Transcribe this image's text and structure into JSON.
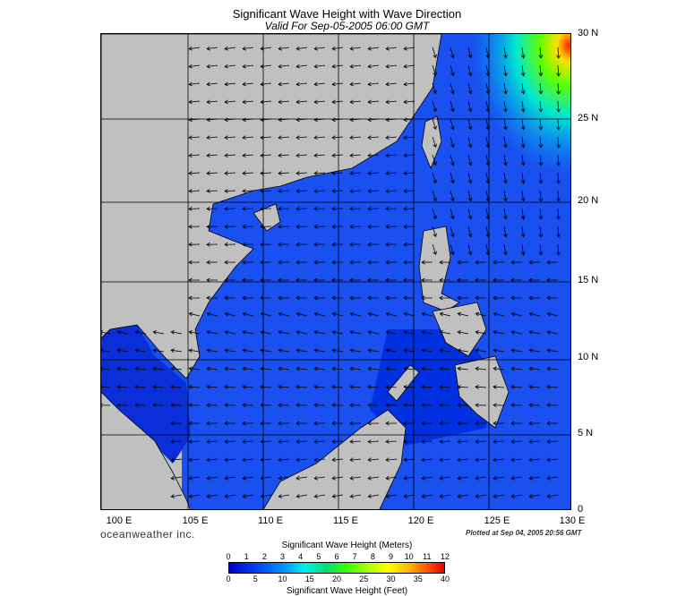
{
  "title": "Significant Wave Height with Wave Direction",
  "subtitle": "Valid For Sep-05-2005 06:00 GMT",
  "lat_labels": [
    "30 N",
    "25 N",
    "20 N",
    "15 N",
    "10 N",
    "5 N",
    "0"
  ],
  "lon_labels": [
    "100 E",
    "105 E",
    "110 E",
    "115 E",
    "120 E",
    "125 E",
    "130 E"
  ],
  "credit": "oceanweather inc.",
  "plotted": "Plotted at Sep 04, 2005 20:56 GMT",
  "colorbar": {
    "meters_label": "Significant Wave Height (Meters)",
    "feet_label": "Significant Wave Height (Feet)",
    "meters_ticks": [
      "0",
      "1",
      "2",
      "3",
      "4",
      "5",
      "6",
      "7",
      "8",
      "9",
      "10",
      "11",
      "12"
    ],
    "feet_ticks": [
      "0",
      "5",
      "10",
      "15",
      "20",
      "25",
      "30",
      "35",
      "40"
    ]
  },
  "colors": {
    "land": "#c0c0c0",
    "low": "#0000c8",
    "mid": "#00a0ff",
    "high": "#40ff00",
    "max": "#ff2000"
  }
}
